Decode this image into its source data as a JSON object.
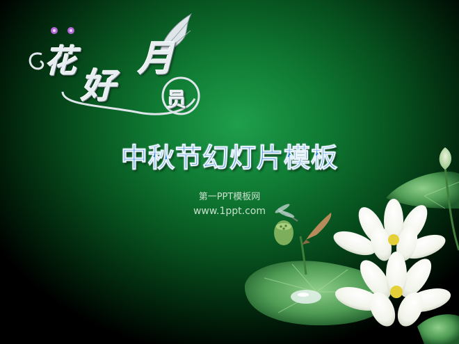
{
  "slide": {
    "logo": {
      "char_flower": "花",
      "char_good": "好",
      "char_moon": "月",
      "char_round": "员"
    },
    "title": "中秋节幻灯片模板",
    "subtitle_line1": "第一PPT模板网",
    "subtitle_line2": "www.1ppt.com"
  }
}
